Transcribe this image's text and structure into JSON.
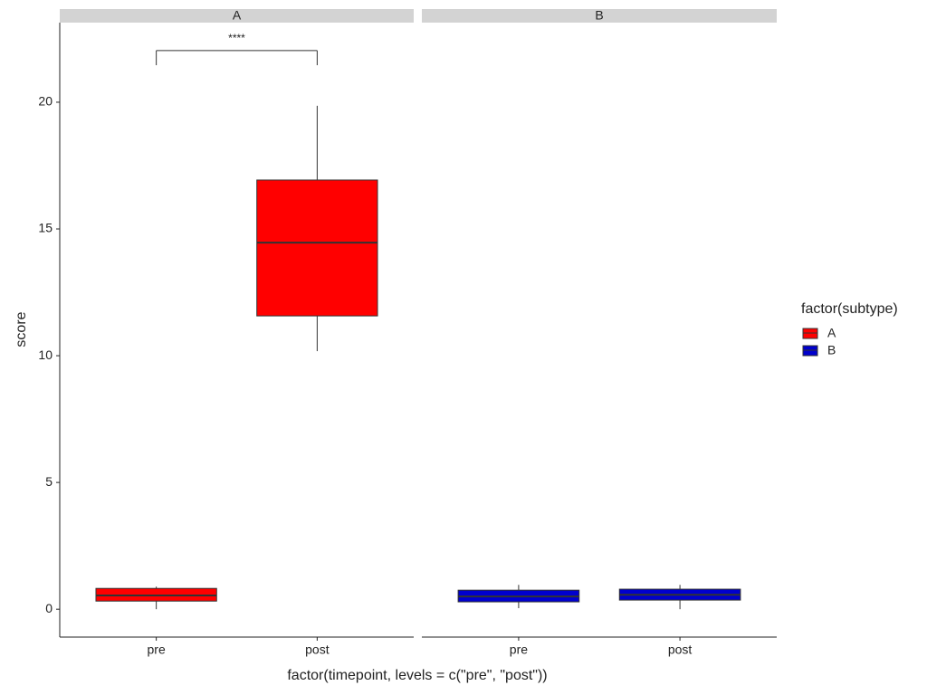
{
  "chart_data": {
    "type": "boxplot",
    "x_label": "factor(timepoint, levels = c(\"pre\", \"post\"))",
    "y_label": "score",
    "legend_title": "factor(subtype)",
    "ylim": [
      -1.1,
      23.14
    ],
    "yticks": [
      0,
      5,
      10,
      15,
      20
    ],
    "categories": [
      "pre",
      "post"
    ],
    "series": [
      {
        "name": "A",
        "color": "#ff0000",
        "boxes": [
          {
            "whisker_low": 0.0,
            "q1": 0.32,
            "median": 0.54,
            "q3": 0.82,
            "whisker_high": 0.89
          },
          {
            "whisker_low": 10.18,
            "q1": 11.57,
            "median": 14.46,
            "q3": 16.93,
            "whisker_high": 19.86
          }
        ],
        "bracket": {
          "label": "****",
          "y": 22.04,
          "tip": 21.46
        }
      },
      {
        "name": "B",
        "color": "#0000cd",
        "boxes": [
          {
            "whisker_low": 0.04,
            "q1": 0.29,
            "median": 0.5,
            "q3": 0.75,
            "whisker_high": 0.96
          },
          {
            "whisker_low": 0.0,
            "q1": 0.36,
            "median": 0.57,
            "q3": 0.79,
            "whisker_high": 0.96
          }
        ]
      }
    ]
  }
}
